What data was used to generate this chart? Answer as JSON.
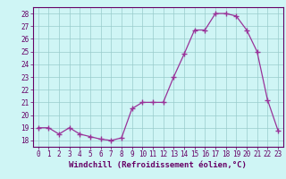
{
  "x": [
    0,
    1,
    2,
    3,
    4,
    5,
    6,
    7,
    8,
    9,
    10,
    11,
    12,
    13,
    14,
    15,
    16,
    17,
    18,
    19,
    20,
    21,
    22,
    23
  ],
  "y": [
    19,
    19,
    18.5,
    19,
    18.5,
    18.3,
    18.1,
    18,
    18.2,
    20.5,
    21,
    21,
    21,
    23,
    24.8,
    26.7,
    26.7,
    28,
    28,
    27.8,
    26.7,
    25,
    21.2,
    18.8
  ],
  "line_color": "#993399",
  "marker": "+",
  "marker_size": 4,
  "marker_color": "#993399",
  "background_color": "#cff5f5",
  "grid_color": "#99cccc",
  "xlabel": "Windchill (Refroidissement éolien,°C)",
  "xlabel_color": "#660066",
  "tick_color": "#660066",
  "spine_color": "#660066",
  "xlim": [
    -0.5,
    23.5
  ],
  "ylim": [
    17.5,
    28.5
  ],
  "yticks": [
    18,
    19,
    20,
    21,
    22,
    23,
    24,
    25,
    26,
    27,
    28
  ],
  "xticks": [
    0,
    1,
    2,
    3,
    4,
    5,
    6,
    7,
    8,
    9,
    10,
    11,
    12,
    13,
    14,
    15,
    16,
    17,
    18,
    19,
    20,
    21,
    22,
    23
  ],
  "tick_fontsize": 5.5,
  "xlabel_fontsize": 6.5
}
